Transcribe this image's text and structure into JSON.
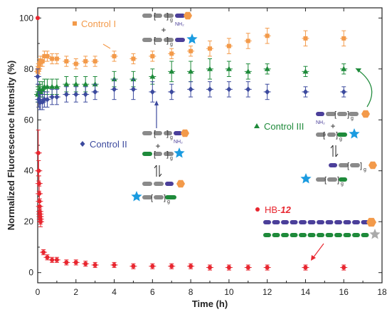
{
  "chart_data": {
    "type": "scatter",
    "xlabel": "Time (h)",
    "ylabel": "Normalized Fluorescence Intensity (%)",
    "xlim": [
      0,
      18
    ],
    "ylim": [
      -4,
      104
    ],
    "xticks": [
      0,
      2,
      4,
      6,
      8,
      10,
      12,
      14,
      16,
      18
    ],
    "yticks": [
      0,
      20,
      40,
      60,
      80,
      100
    ],
    "legend_placement": "in-plot annotations",
    "series": [
      {
        "name": "Control I",
        "marker": "square",
        "color": "#f39a4a",
        "points": [
          [
            0.0,
            79
          ],
          [
            0.05,
            80
          ],
          [
            0.1,
            82
          ],
          [
            0.15,
            83
          ],
          [
            0.25,
            83
          ],
          [
            0.35,
            85
          ],
          [
            0.5,
            85
          ],
          [
            0.75,
            84
          ],
          [
            1.0,
            84
          ],
          [
            1.5,
            83
          ],
          [
            2.0,
            82
          ],
          [
            2.5,
            83
          ],
          [
            3.0,
            83
          ],
          [
            4.0,
            85
          ],
          [
            5.0,
            84
          ],
          [
            6.0,
            85
          ],
          [
            7.0,
            86
          ],
          [
            8.0,
            87
          ],
          [
            9.0,
            88
          ],
          [
            10.0,
            89
          ],
          [
            11.0,
            91
          ],
          [
            12.0,
            93
          ],
          [
            14.0,
            92
          ],
          [
            16.0,
            92
          ]
        ],
        "error": [
          2,
          2,
          2,
          2,
          2,
          2,
          2,
          2,
          2,
          2,
          2,
          2,
          2,
          2,
          2,
          2,
          2,
          2,
          3,
          3,
          3,
          3,
          3,
          3
        ]
      },
      {
        "name": "Control III",
        "marker": "triangle",
        "color": "#1e8a3a",
        "points": [
          [
            0.0,
            70
          ],
          [
            0.05,
            71
          ],
          [
            0.1,
            72
          ],
          [
            0.15,
            71
          ],
          [
            0.25,
            72
          ],
          [
            0.35,
            73
          ],
          [
            0.5,
            73
          ],
          [
            0.75,
            73
          ],
          [
            1.0,
            73
          ],
          [
            1.5,
            74
          ],
          [
            2.0,
            74
          ],
          [
            2.5,
            74
          ],
          [
            3.0,
            74
          ],
          [
            4.0,
            76
          ],
          [
            5.0,
            76
          ],
          [
            6.0,
            77
          ],
          [
            7.0,
            79
          ],
          [
            8.0,
            79
          ],
          [
            9.0,
            80
          ],
          [
            10.0,
            80
          ],
          [
            11.0,
            79
          ],
          [
            12.0,
            80
          ],
          [
            14.0,
            79
          ],
          [
            16.0,
            80
          ]
        ],
        "error": [
          3,
          3,
          3,
          3,
          3,
          3,
          3,
          3,
          3,
          3,
          3,
          3,
          3,
          3,
          3,
          3,
          4,
          4,
          4,
          3,
          3,
          2,
          2,
          2
        ]
      },
      {
        "name": "Control II",
        "marker": "diamond",
        "color": "#3c4a9e",
        "points": [
          [
            0.0,
            77
          ],
          [
            0.05,
            68
          ],
          [
            0.1,
            67
          ],
          [
            0.15,
            67
          ],
          [
            0.25,
            67
          ],
          [
            0.35,
            68
          ],
          [
            0.5,
            68
          ],
          [
            0.75,
            69
          ],
          [
            1.0,
            69
          ],
          [
            1.5,
            70
          ],
          [
            2.0,
            70
          ],
          [
            2.5,
            70
          ],
          [
            3.0,
            71
          ],
          [
            4.0,
            72
          ],
          [
            5.0,
            72
          ],
          [
            6.0,
            71
          ],
          [
            7.0,
            71
          ],
          [
            8.0,
            72
          ],
          [
            9.0,
            72
          ],
          [
            10.0,
            72
          ],
          [
            11.0,
            72
          ],
          [
            12.0,
            71
          ],
          [
            14.0,
            71
          ],
          [
            16.0,
            71
          ]
        ],
        "error": [
          3,
          3,
          3,
          3,
          3,
          3,
          3,
          3,
          3,
          3,
          3,
          3,
          3,
          4,
          4,
          4,
          3,
          3,
          3,
          3,
          3,
          3,
          2,
          2
        ]
      },
      {
        "name": "HB-12",
        "marker": "circle",
        "color": "#e8262f",
        "points": [
          [
            0.0,
            100
          ],
          [
            0.03,
            47
          ],
          [
            0.05,
            40
          ],
          [
            0.07,
            35
          ],
          [
            0.08,
            31
          ],
          [
            0.09,
            28
          ],
          [
            0.1,
            26
          ],
          [
            0.11,
            24
          ],
          [
            0.12,
            23
          ],
          [
            0.13,
            22
          ],
          [
            0.14,
            21
          ],
          [
            0.15,
            20
          ],
          [
            0.3,
            8
          ],
          [
            0.5,
            6
          ],
          [
            0.75,
            5
          ],
          [
            1.0,
            5
          ],
          [
            1.5,
            4
          ],
          [
            2.0,
            4
          ],
          [
            2.5,
            3.5
          ],
          [
            3.0,
            3
          ],
          [
            4.0,
            3
          ],
          [
            5.0,
            2.5
          ],
          [
            6.0,
            2.5
          ],
          [
            7.0,
            2.5
          ],
          [
            8.0,
            2.5
          ],
          [
            9.0,
            2
          ],
          [
            10.0,
            2
          ],
          [
            11.0,
            2
          ],
          [
            12.0,
            2
          ],
          [
            14.0,
            2
          ],
          [
            16.0,
            2
          ]
        ],
        "error": [
          0,
          9,
          4,
          3,
          3,
          3,
          3,
          2,
          2,
          2,
          2,
          2,
          1,
          1,
          1,
          1,
          1,
          1,
          1,
          1,
          1,
          1,
          1,
          1,
          1,
          1,
          1,
          1,
          1,
          1,
          1
        ]
      }
    ],
    "labels": [
      {
        "text": "Control I",
        "color": "#f39a4a"
      },
      {
        "text": "Control II",
        "color": "#3c4a9e"
      },
      {
        "text": "Control III",
        "color": "#1e8a3a"
      },
      {
        "text_prefix": "HB-",
        "text_suffix": "12",
        "color": "#e8262f"
      }
    ],
    "schematic_text": {
      "plus": "+",
      "subscript_g": "g",
      "nh2": "NH₂",
      "brackets_open": "[",
      "brackets_close": "]"
    },
    "colors": {
      "backbone_gray": "#8a8a8a",
      "purple": "#4b3f9a",
      "green_segment": "#1e8a3a",
      "orange_hexagon": "#f39a4a",
      "blue_star": "#1a9be0",
      "gray_star": "#aaaaaa",
      "arrow_orange": "#f39a4a",
      "arrow_blue": "#3c4a9e",
      "arrow_green": "#1e8a3a",
      "arrow_red": "#e8262f"
    }
  }
}
